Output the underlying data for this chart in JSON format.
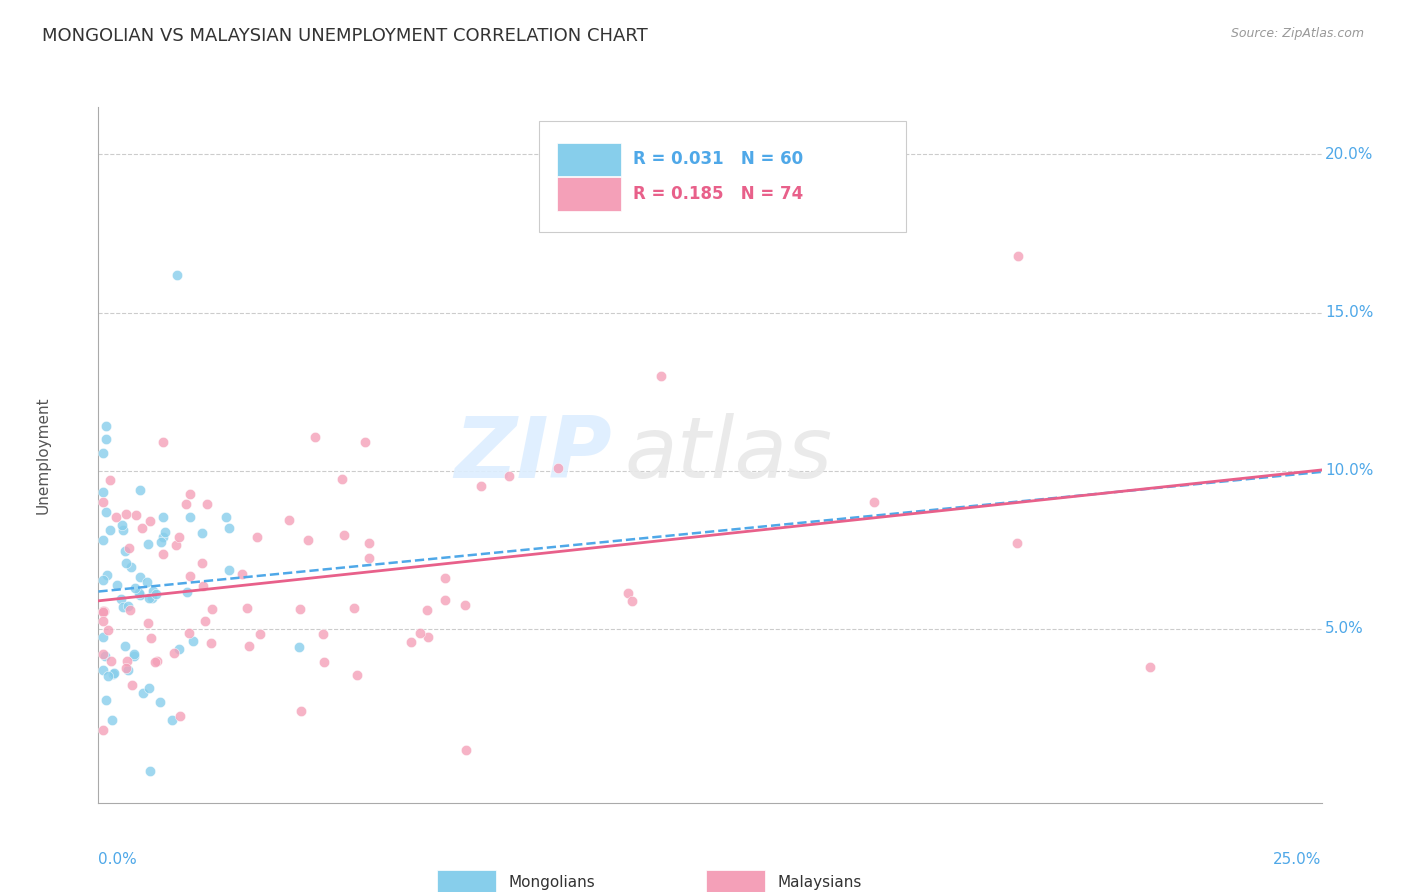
{
  "title": "MONGOLIAN VS MALAYSIAN UNEMPLOYMENT CORRELATION CHART",
  "source_text": "Source: ZipAtlas.com",
  "ylabel": "Unemployment",
  "watermark_zip": "ZIP",
  "watermark_atlas": "atlas",
  "mongolian_R": 0.031,
  "mongolian_N": 60,
  "malaysian_R": 0.185,
  "malaysian_N": 74,
  "mongolian_color": "#87CEEB",
  "malaysian_color": "#F4A0B8",
  "mongolian_trend_color": "#4FA8E8",
  "malaysian_trend_color": "#E8608A",
  "xlim": [
    0.0,
    0.25
  ],
  "ylim": [
    -0.005,
    0.215
  ],
  "yticks": [
    0.05,
    0.1,
    0.15,
    0.2
  ],
  "ytick_labels": [
    "5.0%",
    "10.0%",
    "15.0%",
    "20.0%"
  ],
  "grid_color": "#CCCCCC",
  "background_color": "#FFFFFF",
  "seed": 12345
}
